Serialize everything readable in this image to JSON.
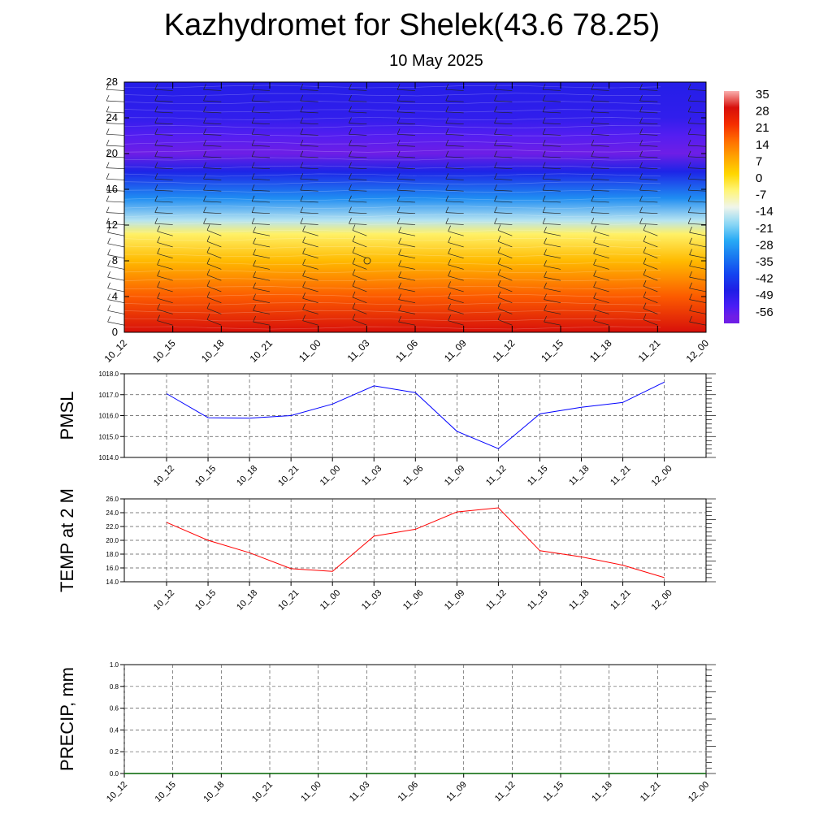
{
  "page": {
    "title": "Kazhydromet for Shelek(43.6 78.25)",
    "subtitle": "10 May 2025"
  },
  "chart_data": [
    {
      "type": "heatmap",
      "title": "Kazhydromet for Shelek(43.6 78.25)",
      "subtitle": "10 May 2025",
      "x_categories": [
        "10_12",
        "10_15",
        "10_18",
        "10_21",
        "11_00",
        "11_03",
        "11_06",
        "11_09",
        "11_12",
        "11_15",
        "11_18",
        "11_21",
        "12_00"
      ],
      "y_ticks": [
        0,
        4,
        8,
        12,
        16,
        20,
        24,
        28
      ],
      "ylim": [
        0,
        28
      ],
      "colorbar_ticks": [
        "35",
        "28",
        "21",
        "14",
        "7",
        "0",
        "-7",
        "-14",
        "-21",
        "-28",
        "-35",
        "-42",
        "-49",
        "-56"
      ],
      "temperature_profile": [
        {
          "level": 0,
          "value": 28
        },
        {
          "level": 4,
          "value": 16
        },
        {
          "level": 8,
          "value": 4
        },
        {
          "level": 11,
          "value": -6
        },
        {
          "level": 12.5,
          "value": -18
        },
        {
          "level": 15,
          "value": -32
        },
        {
          "level": 18,
          "value": -48
        },
        {
          "level": 20,
          "value": -60
        },
        {
          "level": 22,
          "value": -57
        },
        {
          "level": 24,
          "value": -52
        },
        {
          "level": 28,
          "value": -50
        }
      ],
      "wind_barbs": true
    },
    {
      "type": "line",
      "ylabel": "PMSL",
      "categories": [
        "10_12",
        "10_15",
        "10_18",
        "10_21",
        "11_00",
        "11_03",
        "11_06",
        "11_09",
        "11_12",
        "11_15",
        "11_18",
        "11_21",
        "12_00"
      ],
      "values": [
        1017.05,
        1015.9,
        1015.88,
        1016.0,
        1016.55,
        1017.42,
        1017.1,
        1015.25,
        1014.42,
        1016.08,
        1016.4,
        1016.63,
        1017.6
      ],
      "ylim": [
        1014.0,
        1018.0
      ],
      "y_ticks": [
        "1014.0",
        "1015.0",
        "1016.0",
        "1017.0",
        "1018.0"
      ],
      "color": "#0000ff",
      "grid": true
    },
    {
      "type": "line",
      "ylabel": "TEMP at 2 M",
      "categories": [
        "10_12",
        "10_15",
        "10_18",
        "10_21",
        "11_00",
        "11_03",
        "11_06",
        "11_09",
        "11_12",
        "11_15",
        "11_18",
        "11_21",
        "12_00"
      ],
      "values": [
        22.6,
        20.0,
        18.2,
        15.9,
        15.5,
        20.6,
        21.6,
        24.1,
        24.7,
        18.5,
        17.6,
        16.4,
        14.6
      ],
      "ylim": [
        14.0,
        26.0
      ],
      "y_ticks": [
        "14.0",
        "16.0",
        "18.0",
        "20.0",
        "22.0",
        "24.0",
        "26.0"
      ],
      "color": "#ff0000",
      "grid": true
    },
    {
      "type": "bar",
      "ylabel": "PRECIP, mm",
      "categories": [
        "10_12",
        "10_15",
        "10_18",
        "10_21",
        "11_00",
        "11_03",
        "11_06",
        "11_09",
        "11_12",
        "11_15",
        "11_18",
        "11_21",
        "12_00"
      ],
      "values": [
        0,
        0,
        0,
        0,
        0,
        0,
        0,
        0,
        0,
        0,
        0,
        0,
        0
      ],
      "ylim": [
        0.0,
        1.0
      ],
      "y_ticks": [
        "0.0",
        "0.2",
        "0.4",
        "0.6",
        "0.8",
        "1.0"
      ],
      "color": "#006400",
      "grid": true
    }
  ]
}
